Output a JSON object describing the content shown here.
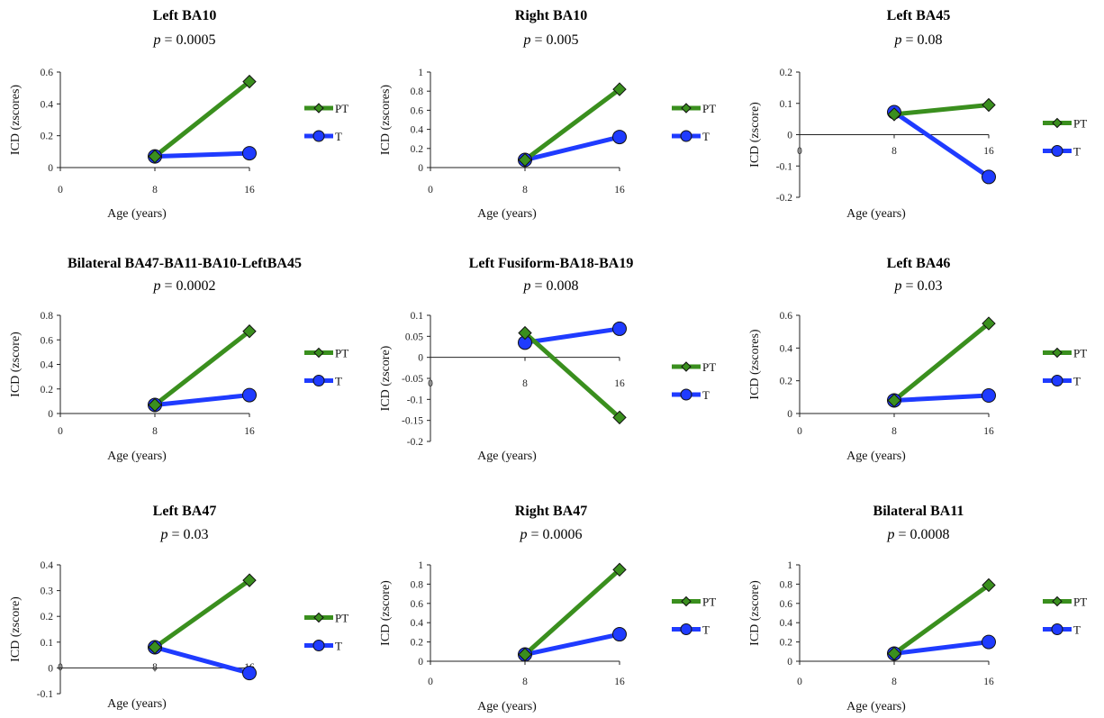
{
  "figure": {
    "pt_color": "#3a8f1e",
    "t_color": "#1f3bff",
    "legend": {
      "pt": "PT",
      "t": "T"
    }
  },
  "chart_data": [
    {
      "type": "line",
      "title": "Left BA10",
      "p_label": "p",
      "p_value": "= 0.0005",
      "xlabel": "Age (years)",
      "ylabel": "ICD (zscores)",
      "x": [
        8,
        16
      ],
      "xlim": [
        0,
        16
      ],
      "xticks": [
        "0",
        "8",
        "16"
      ],
      "ylim": [
        0,
        0.6
      ],
      "yticks": [
        "0",
        "0.2",
        "0.4",
        "0.6"
      ],
      "series": [
        {
          "name": "PT",
          "values": [
            0.07,
            0.54
          ]
        },
        {
          "name": "T",
          "values": [
            0.07,
            0.09
          ]
        }
      ]
    },
    {
      "type": "line",
      "title": "Right BA10",
      "p_label": "p",
      "p_value": "= 0.005",
      "xlabel": "Age (years)",
      "ylabel": "ICD (zscores)",
      "x": [
        8,
        16
      ],
      "xlim": [
        0,
        16
      ],
      "xticks": [
        "0",
        "8",
        "16"
      ],
      "ylim": [
        0,
        1
      ],
      "yticks": [
        "0",
        "0.2",
        "0.4",
        "0.6",
        "0.8",
        "1"
      ],
      "series": [
        {
          "name": "PT",
          "values": [
            0.08,
            0.82
          ]
        },
        {
          "name": "T",
          "values": [
            0.08,
            0.32
          ]
        }
      ]
    },
    {
      "type": "line",
      "title": "Left BA45",
      "p_label": "p",
      "p_value": "= 0.08",
      "xlabel": "Age (years)",
      "ylabel": "ICD (zscore)",
      "x": [
        8,
        16
      ],
      "xlim": [
        0,
        16
      ],
      "xticks": [
        "0",
        "8",
        "16"
      ],
      "ylim": [
        -0.2,
        0.2
      ],
      "yticks": [
        "-0.2",
        "-0.1",
        "0",
        "0.1",
        "0.2"
      ],
      "series": [
        {
          "name": "PT",
          "values": [
            0.065,
            0.095
          ]
        },
        {
          "name": "T",
          "values": [
            0.072,
            -0.135
          ]
        }
      ]
    },
    {
      "type": "line",
      "title": "Bilateral BA47-BA11-BA10-LeftBA45",
      "p_label": "p",
      "p_value": "= 0.0002",
      "xlabel": "Age (years)",
      "ylabel": "ICD (zscore)",
      "x": [
        8,
        16
      ],
      "xlim": [
        0,
        16
      ],
      "xticks": [
        "0",
        "8",
        "16"
      ],
      "ylim": [
        0,
        0.8
      ],
      "yticks": [
        "0",
        "0.2",
        "0.4",
        "0.6",
        "0.8"
      ],
      "series": [
        {
          "name": "PT",
          "values": [
            0.07,
            0.67
          ]
        },
        {
          "name": "T",
          "values": [
            0.07,
            0.15
          ]
        }
      ]
    },
    {
      "type": "line",
      "title": "Left Fusiform-BA18-BA19",
      "p_label": "p",
      "p_value": "= 0.008",
      "xlabel": "Age (years)",
      "ylabel": "ICD (zscore)",
      "x": [
        8,
        16
      ],
      "xlim": [
        0,
        16
      ],
      "xticks": [
        "0",
        "8",
        "16"
      ],
      "ylim": [
        -0.2,
        0.1
      ],
      "yticks": [
        "-0.2",
        "-0.15",
        "-0.1",
        "-0.05",
        "0",
        "0.05",
        "0.1"
      ],
      "series": [
        {
          "name": "PT",
          "values": [
            0.058,
            -0.143
          ]
        },
        {
          "name": "T",
          "values": [
            0.035,
            0.068
          ]
        }
      ]
    },
    {
      "type": "line",
      "title": "Left BA46",
      "p_label": "p",
      "p_value": "= 0.03",
      "xlabel": "Age (years)",
      "ylabel": "ICD (zscores)",
      "x": [
        8,
        16
      ],
      "xlim": [
        0,
        16
      ],
      "xticks": [
        "0",
        "8",
        "16"
      ],
      "ylim": [
        0,
        0.6
      ],
      "yticks": [
        "0",
        "0.2",
        "0.4",
        "0.6"
      ],
      "series": [
        {
          "name": "PT",
          "values": [
            0.08,
            0.55
          ]
        },
        {
          "name": "T",
          "values": [
            0.08,
            0.11
          ]
        }
      ]
    },
    {
      "type": "line",
      "title": "Left BA47",
      "p_label": "p",
      "p_value": "= 0.03",
      "xlabel": "Age (years)",
      "ylabel": "ICD (zscore)",
      "x": [
        8,
        16
      ],
      "xlim": [
        0,
        16
      ],
      "xticks": [
        "0",
        "8",
        "16"
      ],
      "ylim": [
        -0.1,
        0.4
      ],
      "yticks": [
        "-0.1",
        "0",
        "0.1",
        "0.2",
        "0.3",
        "0.4"
      ],
      "series": [
        {
          "name": "PT",
          "values": [
            0.08,
            0.34
          ]
        },
        {
          "name": "T",
          "values": [
            0.08,
            -0.02
          ]
        }
      ]
    },
    {
      "type": "line",
      "title": "Right BA47",
      "p_label": "p",
      "p_value": "= 0.0006",
      "xlabel": "Age (years)",
      "ylabel": "ICD (zscore)",
      "x": [
        8,
        16
      ],
      "xlim": [
        0,
        16
      ],
      "xticks": [
        "0",
        "8",
        "16"
      ],
      "ylim": [
        0,
        1
      ],
      "yticks": [
        "0",
        "0.2",
        "0.4",
        "0.6",
        "0.8",
        "1"
      ],
      "series": [
        {
          "name": "PT",
          "values": [
            0.07,
            0.95
          ]
        },
        {
          "name": "T",
          "values": [
            0.07,
            0.28
          ]
        }
      ]
    },
    {
      "type": "line",
      "title": "Bilateral BA11",
      "p_label": "p",
      "p_value": "= 0.0008",
      "xlabel": "Age (years)",
      "ylabel": "ICD (zscore)",
      "x": [
        8,
        16
      ],
      "xlim": [
        0,
        16
      ],
      "xticks": [
        "0",
        "8",
        "16"
      ],
      "ylim": [
        0,
        1
      ],
      "yticks": [
        "0",
        "0.2",
        "0.4",
        "0.6",
        "0.8",
        "1"
      ],
      "series": [
        {
          "name": "PT",
          "values": [
            0.08,
            0.79
          ]
        },
        {
          "name": "T",
          "values": [
            0.08,
            0.2
          ]
        }
      ]
    }
  ]
}
